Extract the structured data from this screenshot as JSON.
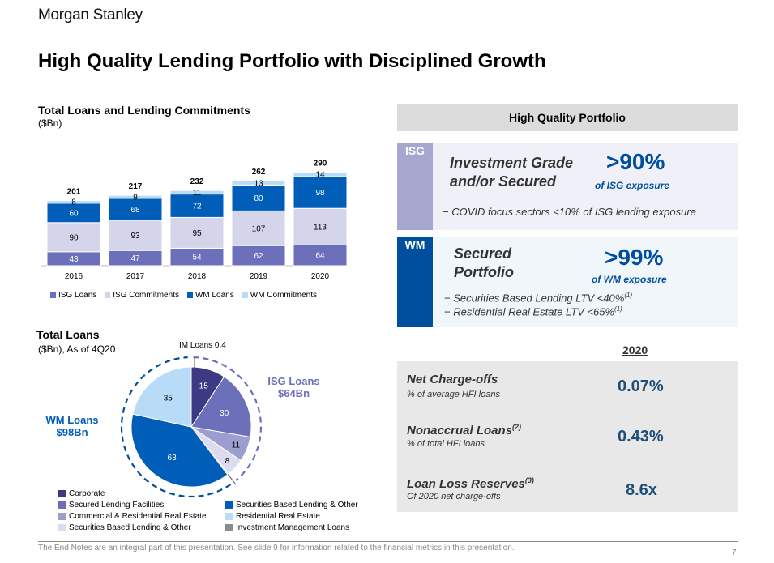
{
  "header": {
    "logo": "Morgan Stanley",
    "title": "High Quality Lending Portfolio with Disciplined Growth"
  },
  "loans_chart": {
    "title": "Total Loans and Lending Commitments",
    "unit": "($Bn)",
    "legend": [
      "ISG Loans",
      "ISG Commitments",
      "WM Loans",
      "WM Commitments"
    ],
    "colors": [
      "#6c6fb9",
      "#d4d5eb",
      "#005eb8",
      "#b8dcf7"
    ]
  },
  "pie_section": {
    "title": "Total Loans",
    "unit": "($Bn), As of 4Q20",
    "im_label": "IM Loans 0.4",
    "isg_label_line1": "ISG Loans",
    "isg_label_line2": "$64Bn",
    "wm_label_line1": "WM Loans",
    "wm_label_line2": "$98Bn",
    "legend_left": [
      "Corporate",
      "Secured Lending Facilities",
      "Commercial & Residential Real Estate",
      "Securities Based Lending & Other"
    ],
    "legend_right": [
      "Securities Based Lending & Other",
      "Residential Real Estate",
      "Investment Management Loans"
    ]
  },
  "chart_data": [
    {
      "type": "bar",
      "stacked": true,
      "title": "Total Loans and Lending Commitments",
      "ylabel": "($Bn)",
      "categories": [
        "2016",
        "2017",
        "2018",
        "2019",
        "2020"
      ],
      "series": [
        {
          "name": "ISG Loans",
          "values": [
            43,
            47,
            54,
            62,
            64
          ],
          "color": "#6c6fb9"
        },
        {
          "name": "ISG Commitments",
          "values": [
            90,
            93,
            95,
            107,
            113
          ],
          "color": "#d4d5eb"
        },
        {
          "name": "WM Loans",
          "values": [
            60,
            68,
            72,
            80,
            98
          ],
          "color": "#005eb8"
        },
        {
          "name": "WM Commitments",
          "values": [
            8,
            9,
            11,
            13,
            14
          ],
          "color": "#b8dcf7"
        }
      ],
      "totals": [
        201,
        217,
        232,
        262,
        290
      ],
      "grid": false
    },
    {
      "type": "pie",
      "title": "Total Loans",
      "subtitle": "($Bn), As of 4Q20",
      "slices": [
        {
          "label": "Corporate",
          "value": 15,
          "color": "#3b3a82"
        },
        {
          "label": "Secured Lending Facilities",
          "value": 30,
          "color": "#6c6fb9"
        },
        {
          "label": "Commercial & Residential Real Estate",
          "value": 11,
          "color": "#9c9ed0"
        },
        {
          "label": "Securities Based Lending & Other (ISG)",
          "value": 8,
          "color": "#dcdcee"
        },
        {
          "label": "Investment Management Loans",
          "value": 0.4,
          "color": "#8c8c8c"
        },
        {
          "label": "Securities Based Lending & Other (WM)",
          "value": 63,
          "color": "#005eb8"
        },
        {
          "label": "Residential Real Estate",
          "value": 35,
          "color": "#b8dcf7"
        }
      ]
    }
  ],
  "quality": {
    "header": "High Quality Portfolio",
    "isg": {
      "tag": "ISG",
      "name_line1": "Investment Grade",
      "name_line2": "and/or Secured",
      "pct": ">90%",
      "pct_sub": "of ISG exposure",
      "bullet": "−  COVID focus sectors <10% of ISG lending exposure"
    },
    "wm": {
      "tag": "WM",
      "name_line1": "Secured",
      "name_line2": "Portfolio",
      "pct": ">99%",
      "pct_sub": "of WM exposure",
      "bullet1": "−  Securities Based Lending  LTV <40%",
      "bullet2": "−  Residential Real Estate  LTV <65%",
      "footnote_ref": "(1)"
    }
  },
  "metrics": {
    "year": "2020",
    "items": [
      {
        "name": "Net Charge-offs",
        "sup": "",
        "sub": "% of average HFI loans",
        "value": "0.07%"
      },
      {
        "name": "Nonaccrual Loans",
        "sup": "(2)",
        "sub": "% of total HFI loans",
        "value": "0.43%"
      },
      {
        "name": "Loan Loss Reserves",
        "sup": "(3)",
        "sub": "Of 2020 net charge-offs",
        "value": "8.6x"
      }
    ]
  },
  "footer": {
    "note": "The End Notes are an integral part of this presentation. See slide 9 for information related to the financial metrics in this presentation.",
    "page": "7"
  }
}
